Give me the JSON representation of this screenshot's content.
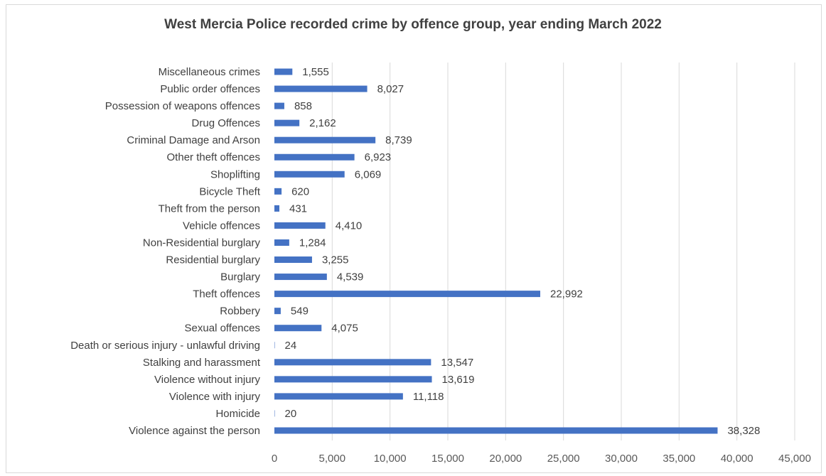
{
  "chart_data": {
    "type": "bar",
    "orientation": "horizontal",
    "title": "West Mercia Police recorded crime by offence group, year ending March 2022",
    "xlabel": "",
    "ylabel": "",
    "xlim": [
      0,
      45000
    ],
    "x_ticks": [
      "0",
      "5,000",
      "10,000",
      "15,000",
      "20,000",
      "25,000",
      "30,000",
      "35,000",
      "40,000",
      "45,000"
    ],
    "x_tick_values": [
      0,
      5000,
      10000,
      15000,
      20000,
      25000,
      30000,
      35000,
      40000,
      45000
    ],
    "grid": "vertical",
    "bar_color": "#4472c4",
    "categories": [
      "Miscellaneous crimes",
      "Public order offences",
      "Possession of weapons offences",
      "Drug Offences",
      "Criminal Damage and Arson",
      "Other theft offences",
      "Shoplifting",
      "Bicycle  Theft",
      "Theft from the person",
      "Vehicle offences",
      "Non-Residential burglary",
      "Residential burglary",
      "Burglary",
      "Theft offences",
      "Robbery",
      "Sexual offences",
      "Death or serious injury - unlawful driving",
      "Stalking and harassment",
      "Violence without injury",
      "Violence with injury",
      "Homicide",
      "Violence against the person"
    ],
    "values": [
      1555,
      8027,
      858,
      2162,
      8739,
      6923,
      6069,
      620,
      431,
      4410,
      1284,
      3255,
      4539,
      22992,
      549,
      4075,
      24,
      13547,
      13619,
      11118,
      20,
      38328
    ],
    "value_labels": [
      "1,555",
      "8,027",
      "858",
      "2,162",
      "8,739",
      "6,923",
      "6,069",
      "620",
      "431",
      "4,410",
      "1,284",
      "3,255",
      "4,539",
      "22,992",
      "549",
      "4,075",
      "24",
      "13,547",
      "13,619",
      "11,118",
      "20",
      "38,328"
    ]
  }
}
